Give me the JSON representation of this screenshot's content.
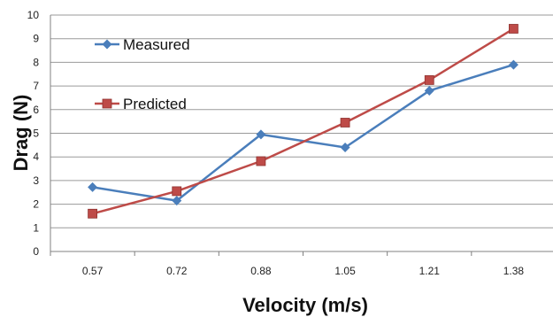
{
  "chart_data": {
    "type": "line",
    "title": "",
    "xlabel": "Velocity (m/s)",
    "ylabel": "Drag (N)",
    "categories": [
      "0.57",
      "0.72",
      "0.88",
      "1.05",
      "1.21",
      "1.38"
    ],
    "ylim": [
      0,
      10
    ],
    "yticks": [
      0,
      1,
      2,
      3,
      4,
      5,
      6,
      7,
      8,
      9,
      10
    ],
    "grid": "horizontal",
    "legend": "top-left",
    "series": [
      {
        "name": "Measured",
        "values": [
          2.72,
          2.15,
          4.95,
          4.4,
          6.8,
          7.9
        ],
        "color": "#4a7ebb",
        "marker": "diamond"
      },
      {
        "name": "Predicted",
        "values": [
          1.6,
          2.55,
          3.82,
          5.45,
          7.25,
          9.42
        ],
        "color": "#be4b48",
        "marker": "square"
      }
    ]
  }
}
